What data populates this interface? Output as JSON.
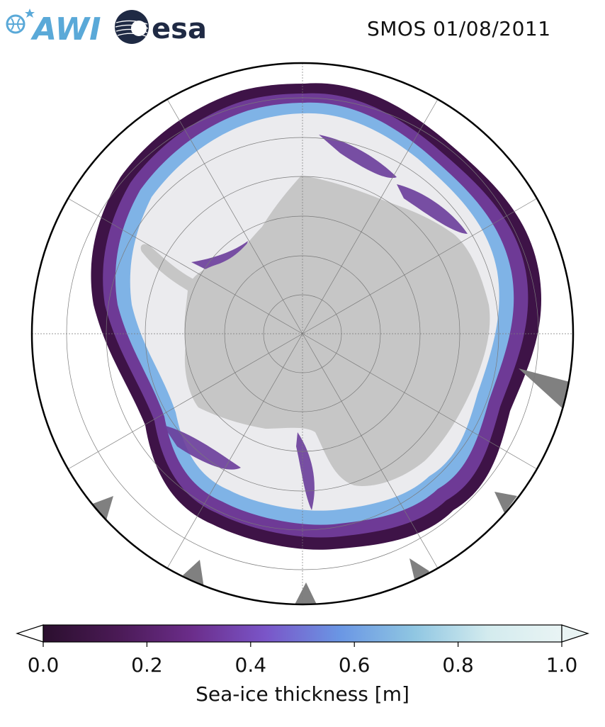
{
  "header": {
    "title": "SMOS 01/08/2011",
    "logos": [
      {
        "name": "awi-logo",
        "text": "AWI"
      },
      {
        "name": "esa-logo",
        "text": "esa"
      }
    ]
  },
  "map": {
    "projection": "south polar stereographic",
    "region": "Antarctica / Southern Ocean",
    "colors": {
      "land": "#c6c6c6",
      "land_ice_shelf": "#eaeaea",
      "missing_data": "#808080",
      "ocean": "#ffffff",
      "gridline": "#7a7a7a"
    }
  },
  "colorbar": {
    "label": "Sea-ice thickness [m]",
    "min": 0.0,
    "max": 1.0,
    "extend": "both",
    "colormap": "dense (cmocean-like)",
    "stops": [
      "#2b0f2e",
      "#4a1a55",
      "#6b2d8a",
      "#7a55c8",
      "#6a96e4",
      "#8fc6e2",
      "#d3ebee",
      "#e9f4f4"
    ],
    "ticks": [
      "0.0",
      "0.2",
      "0.4",
      "0.6",
      "0.8",
      "1.0"
    ]
  }
}
